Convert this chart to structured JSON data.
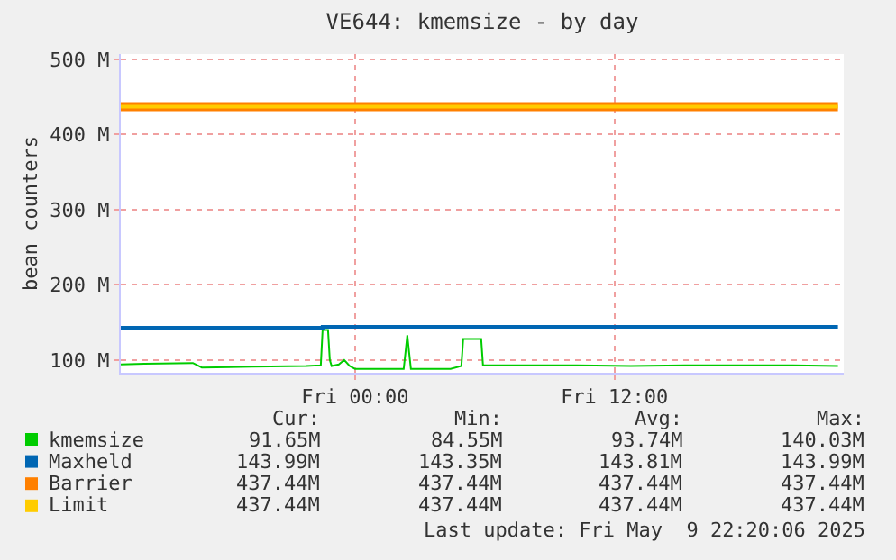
{
  "chart_data": {
    "type": "line",
    "title": "VE644: kmemsize - by day",
    "ylabel": "bean counters",
    "xlim": [
      "2025-05-08T13:10",
      "2025-05-09T22:36"
    ],
    "xticks": [
      {
        "value": "2025-05-09T00:00",
        "label": "Fri 00:00"
      },
      {
        "value": "2025-05-09T12:00",
        "label": "Fri 12:00"
      }
    ],
    "ylim": [
      83,
      507
    ],
    "yticks": [
      {
        "value": 100,
        "label": "100 M"
      },
      {
        "value": 200,
        "label": "200 M"
      },
      {
        "value": 300,
        "label": "300 M"
      },
      {
        "value": 400,
        "label": "400 M"
      },
      {
        "value": 500,
        "label": "500 M"
      }
    ],
    "grid": true,
    "legend": "bottom",
    "line_style": "solid",
    "series": [
      {
        "name": "kmemsize",
        "color": "#00cc00",
        "x": [
          "2025-05-08T13:10",
          "2025-05-08T14:15",
          "2025-05-08T16:30",
          "2025-05-08T16:55",
          "2025-05-08T19:15",
          "2025-05-08T21:45",
          "2025-05-08T22:25",
          "2025-05-08T22:30",
          "2025-05-08T22:35",
          "2025-05-08T22:45",
          "2025-05-08T22:50",
          "2025-05-08T22:55",
          "2025-05-08T23:15",
          "2025-05-08T23:30",
          "2025-05-08T23:45",
          "2025-05-09T00:00",
          "2025-05-09T01:05",
          "2025-05-09T02:15",
          "2025-05-09T02:20",
          "2025-05-09T02:25",
          "2025-05-09T02:30",
          "2025-05-09T02:35",
          "2025-05-09T03:35",
          "2025-05-09T04:25",
          "2025-05-09T04:55",
          "2025-05-09T05:00",
          "2025-05-09T05:10",
          "2025-05-09T05:45",
          "2025-05-09T05:50",
          "2025-05-09T05:55",
          "2025-05-09T07:45",
          "2025-05-09T10:15",
          "2025-05-09T12:45",
          "2025-05-09T15:15",
          "2025-05-09T17:45",
          "2025-05-09T20:15",
          "2025-05-09T22:20"
        ],
        "values": [
          94,
          95,
          96,
          90,
          91,
          92,
          93,
          140,
          140,
          140,
          100,
          92,
          94,
          100,
          92,
          88,
          88,
          88,
          110,
          133,
          110,
          88,
          88,
          88,
          92,
          128,
          128,
          128,
          128,
          93,
          93,
          93,
          92,
          93,
          93,
          93,
          92
        ]
      },
      {
        "name": "Maxheld",
        "color": "#0066b3",
        "x": [
          "2025-05-08T13:10",
          "2025-05-08T22:30",
          "2025-05-08T22:30",
          "2025-05-09T22:20"
        ],
        "values": [
          143,
          143,
          144,
          144
        ]
      },
      {
        "name": "Barrier",
        "color": "#ff8000",
        "x": [
          "2025-05-08T13:10",
          "2025-05-09T22:20"
        ],
        "values": [
          437,
          437
        ]
      },
      {
        "name": "Limit",
        "color": "#ffcc00",
        "x": [
          "2025-05-08T13:10",
          "2025-05-09T22:20"
        ],
        "values": [
          437,
          437
        ]
      }
    ],
    "annotations": [
      "Cur:",
      "Min:",
      "Avg:",
      "Max:",
      "91.65M",
      "84.55M",
      "93.74M",
      "140.03M",
      "143.99M",
      "143.35M",
      "143.81M",
      "143.99M",
      "437.44M",
      "437.44M",
      "437.44M",
      "437.44M",
      "437.44M",
      "437.44M",
      "437.44M",
      "437.44M",
      "Last update: Fri May  9 22:20:06 2025"
    ]
  }
}
